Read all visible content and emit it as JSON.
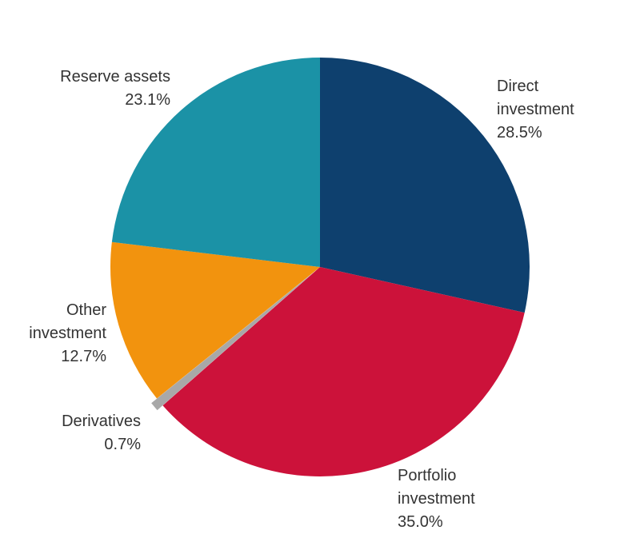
{
  "chart_data": {
    "type": "pie",
    "title": "",
    "start_angle": "12 o'clock",
    "direction": "clockwise",
    "slices": [
      {
        "name": "Direct investment",
        "label_lines": [
          "Direct",
          "investment"
        ],
        "value": 28.5,
        "value_label": "28.5%",
        "color": "#0e406e",
        "exploded": false
      },
      {
        "name": "Portfolio investment",
        "label_lines": [
          "Portfolio",
          "investment"
        ],
        "value": 35.0,
        "value_label": "35.0%",
        "color": "#cc123a",
        "exploded": false
      },
      {
        "name": "Derivatives",
        "label_lines": [
          "Derivatives"
        ],
        "value": 0.7,
        "value_label": "0.7%",
        "color": "#a8a8a8",
        "exploded": true
      },
      {
        "name": "Other investment",
        "label_lines": [
          "Other",
          "investment"
        ],
        "value": 12.7,
        "value_label": "12.7%",
        "color": "#f2930e",
        "exploded": false
      },
      {
        "name": "Reserve assets",
        "label_lines": [
          "Reserve assets"
        ],
        "value": 23.1,
        "value_label": "23.1%",
        "color": "#1b92a6",
        "exploded": false
      }
    ]
  }
}
